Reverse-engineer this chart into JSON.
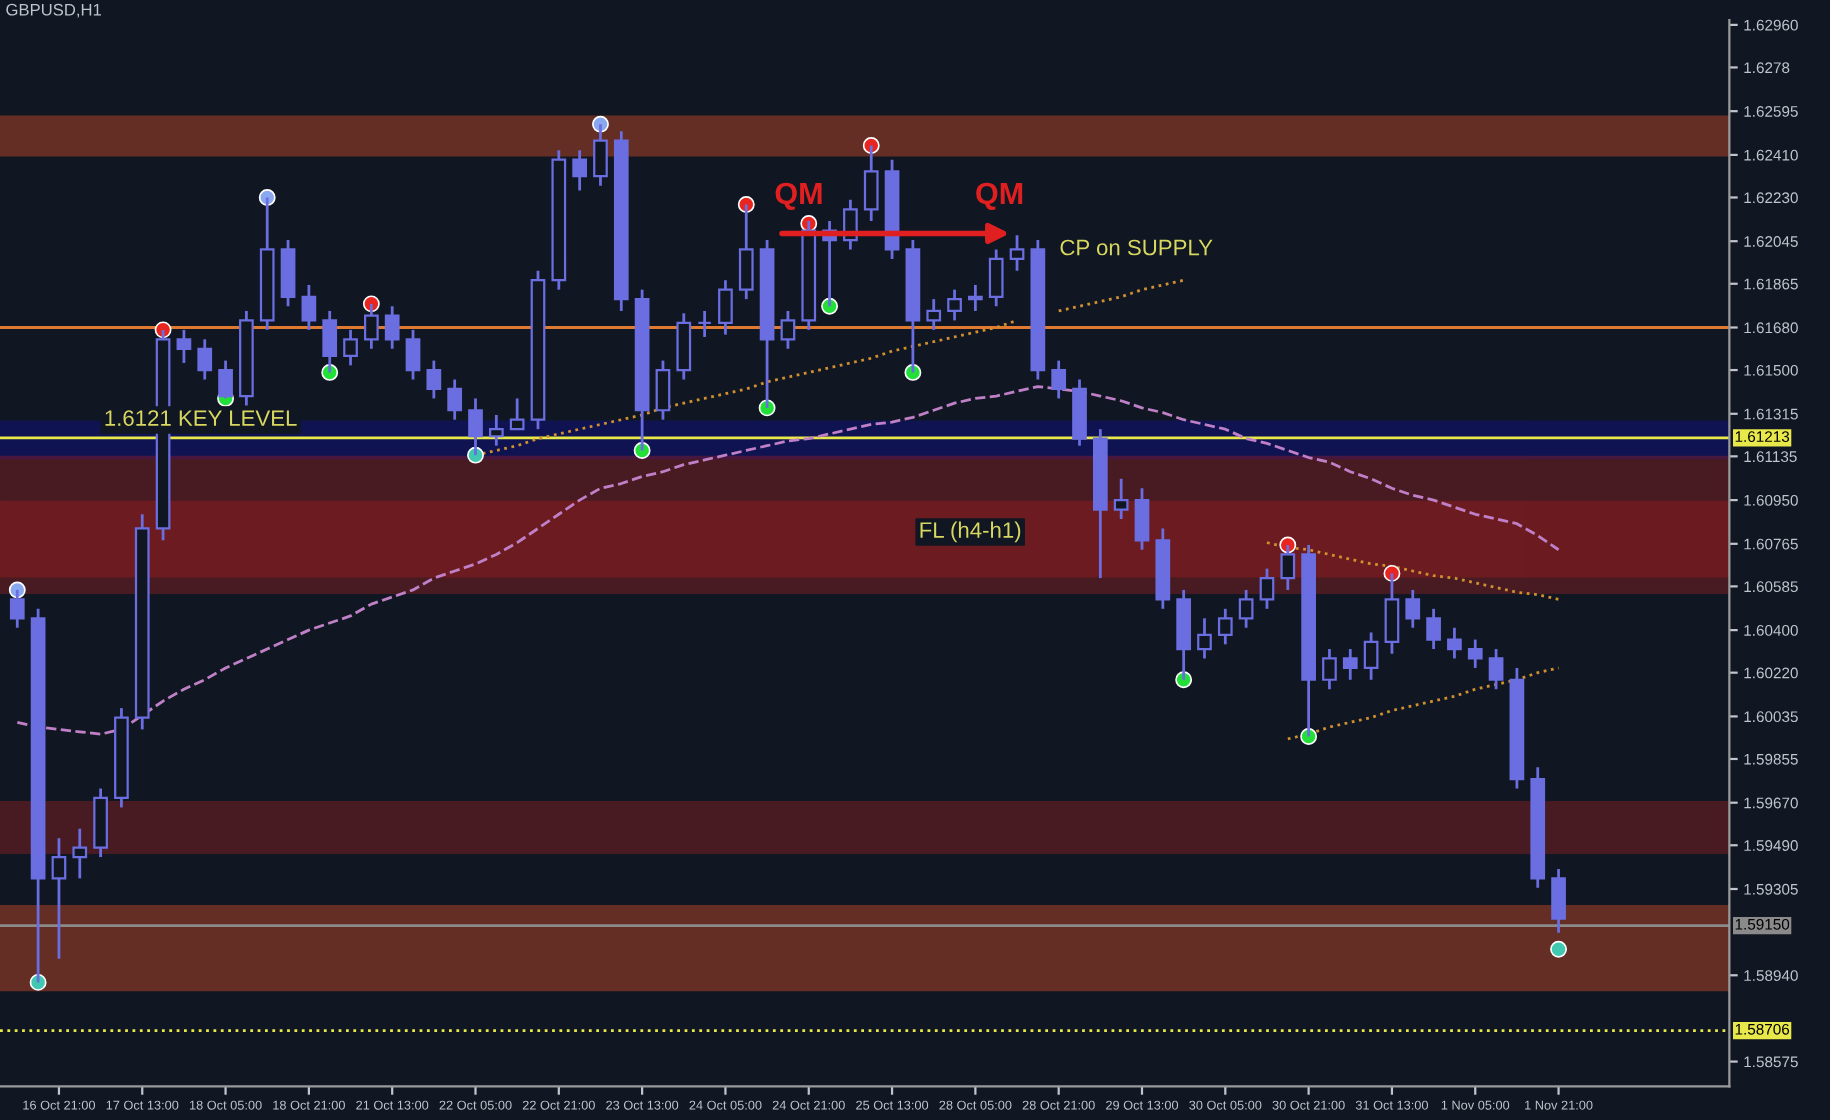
{
  "chart_data": {
    "type": "candlestick",
    "title": "GBPUSD,H1",
    "color": "#6a6ee0",
    "categories": [
      null,
      null,
      "16 Oct 21:00",
      null,
      null,
      null,
      "17 Oct 13:00",
      null,
      null,
      null,
      "18 Oct 05:00",
      null,
      null,
      null,
      "18 Oct 21:00",
      null,
      null,
      null,
      "21 Oct 13:00",
      null,
      null,
      null,
      "22 Oct 05:00",
      null,
      null,
      null,
      "22 Oct 21:00",
      null,
      null,
      null,
      "23 Oct 13:00",
      null,
      null,
      null,
      "24 Oct 05:00",
      null,
      null,
      null,
      "24 Oct 21:00",
      null,
      null,
      null,
      "25 Oct 13:00",
      null,
      null,
      null,
      "28 Oct 05:00",
      null,
      null,
      null,
      "28 Oct 21:00",
      null,
      null,
      null,
      "29 Oct 13:00",
      null,
      null,
      null,
      "30 Oct 05:00",
      null,
      null,
      null,
      "30 Oct 21:00",
      null,
      null,
      null,
      "31 Oct 13:00",
      null,
      null,
      null,
      "1 Nov 05:00",
      null,
      null,
      null,
      "1 Nov 21:00"
    ],
    "ohlc": [
      [
        1.6053,
        1.6057,
        1.6041,
        1.6045
      ],
      [
        1.6045,
        1.6049,
        1.5891,
        1.5935
      ],
      [
        1.5935,
        1.5952,
        1.5901,
        1.5944
      ],
      [
        1.5944,
        1.5956,
        1.5935,
        1.5948
      ],
      [
        1.5948,
        1.5973,
        1.5944,
        1.5969
      ],
      [
        1.5969,
        1.6007,
        1.5965,
        1.6003
      ],
      [
        1.6003,
        1.6089,
        1.5998,
        1.6083
      ],
      [
        1.6083,
        1.6167,
        1.6078,
        1.6163
      ],
      [
        1.6163,
        1.6167,
        1.6153,
        1.6159
      ],
      [
        1.6159,
        1.6163,
        1.6146,
        1.615
      ],
      [
        1.615,
        1.6154,
        1.6138,
        1.6139
      ],
      [
        1.6139,
        1.6175,
        1.6135,
        1.6171
      ],
      [
        1.6171,
        1.6223,
        1.6167,
        1.6201
      ],
      [
        1.6201,
        1.6205,
        1.6177,
        1.6181
      ],
      [
        1.6181,
        1.6186,
        1.6167,
        1.6171
      ],
      [
        1.6171,
        1.6175,
        1.6149,
        1.6156
      ],
      [
        1.6156,
        1.6167,
        1.6152,
        1.6163
      ],
      [
        1.6163,
        1.6178,
        1.6159,
        1.6173
      ],
      [
        1.6173,
        1.6177,
        1.6159,
        1.6163
      ],
      [
        1.6163,
        1.6167,
        1.6146,
        1.615
      ],
      [
        1.615,
        1.6154,
        1.6138,
        1.6142
      ],
      [
        1.6142,
        1.6146,
        1.6129,
        1.6133
      ],
      [
        1.6133,
        1.6138,
        1.6114,
        1.6122
      ],
      [
        1.6122,
        1.6131,
        1.6118,
        1.6125
      ],
      [
        1.6125,
        1.6138,
        1.6125,
        1.6129
      ],
      [
        1.6129,
        1.6192,
        1.6125,
        1.6188
      ],
      [
        1.6188,
        1.6243,
        1.6184,
        1.6239
      ],
      [
        1.6239,
        1.6243,
        1.6226,
        1.6232
      ],
      [
        1.6232,
        1.6254,
        1.6228,
        1.6247
      ],
      [
        1.6247,
        1.6251,
        1.6175,
        1.618
      ],
      [
        1.618,
        1.6184,
        1.6116,
        1.6133
      ],
      [
        1.6133,
        1.6154,
        1.6129,
        1.615
      ],
      [
        1.615,
        1.6174,
        1.6146,
        1.617
      ],
      [
        1.617,
        1.6175,
        1.6164,
        1.617
      ],
      [
        1.617,
        1.6188,
        1.6165,
        1.6184
      ],
      [
        1.6184,
        1.622,
        1.618,
        1.6201
      ],
      [
        1.6201,
        1.6205,
        1.6134,
        1.6163
      ],
      [
        1.6163,
        1.6175,
        1.6159,
        1.6171
      ],
      [
        1.6171,
        1.6213,
        1.6167,
        1.6209
      ],
      [
        1.6209,
        1.6213,
        1.6177,
        1.6205
      ],
      [
        1.6205,
        1.6222,
        1.6201,
        1.6218
      ],
      [
        1.6218,
        1.6245,
        1.6213,
        1.6234
      ],
      [
        1.6234,
        1.6239,
        1.6197,
        1.6201
      ],
      [
        1.6201,
        1.6205,
        1.6149,
        1.6171
      ],
      [
        1.6171,
        1.618,
        1.6167,
        1.6175
      ],
      [
        1.6175,
        1.6184,
        1.6171,
        1.618
      ],
      [
        1.618,
        1.6186,
        1.6175,
        1.6181
      ],
      [
        1.6181,
        1.6201,
        1.6177,
        1.6197
      ],
      [
        1.6197,
        1.6207,
        1.6192,
        1.6201
      ],
      [
        1.6201,
        1.6205,
        1.6146,
        1.615
      ],
      [
        1.615,
        1.6154,
        1.6138,
        1.6142
      ],
      [
        1.6142,
        1.6146,
        1.6118,
        1.6121
      ],
      [
        1.6121,
        1.6125,
        1.6062,
        1.6091
      ],
      [
        1.6091,
        1.6104,
        1.6087,
        1.6095
      ],
      [
        1.6095,
        1.61,
        1.6074,
        1.6078
      ],
      [
        1.6078,
        1.6083,
        1.6049,
        1.6053
      ],
      [
        1.6053,
        1.6057,
        1.6019,
        1.6032
      ],
      [
        1.6032,
        1.6045,
        1.6028,
        1.6038
      ],
      [
        1.6038,
        1.6049,
        1.6034,
        1.6045
      ],
      [
        1.6045,
        1.6057,
        1.6041,
        1.6053
      ],
      [
        1.6053,
        1.6066,
        1.6049,
        1.6062
      ],
      [
        1.6062,
        1.6076,
        1.6057,
        1.6072
      ],
      [
        1.6072,
        1.6076,
        1.5995,
        1.6019
      ],
      [
        1.6019,
        1.6032,
        1.6015,
        1.6028
      ],
      [
        1.6028,
        1.6032,
        1.6019,
        1.6024
      ],
      [
        1.6024,
        1.6039,
        1.6019,
        1.6035
      ],
      [
        1.6035,
        1.6064,
        1.603,
        1.6053
      ],
      [
        1.6053,
        1.6057,
        1.6041,
        1.6045
      ],
      [
        1.6045,
        1.6049,
        1.6032,
        1.6036
      ],
      [
        1.6036,
        1.6041,
        1.6028,
        1.6032
      ],
      [
        1.6032,
        1.6036,
        1.6024,
        1.6028
      ],
      [
        1.6028,
        1.6032,
        1.6015,
        1.6019
      ],
      [
        1.6019,
        1.6024,
        1.5973,
        1.5977
      ],
      [
        1.5977,
        1.5982,
        1.5931,
        1.5935
      ],
      [
        1.5935,
        1.5939,
        1.5912,
        1.5918
      ]
    ],
    "series": [
      {
        "type": "line",
        "color": "#c080c8",
        "line_style": "dashed",
        "values": [
          1.6001,
          1.5999,
          1.5998,
          1.5997,
          1.5996,
          1.5998,
          1.6004,
          1.601,
          1.6015,
          1.6019,
          1.6024,
          1.6028,
          1.6032,
          1.6036,
          1.604,
          1.6043,
          1.6046,
          1.6051,
          1.6054,
          1.6057,
          1.6062,
          1.6065,
          1.6068,
          1.6072,
          1.6077,
          1.6083,
          1.6089,
          1.6095,
          1.61,
          1.6102,
          1.6105,
          1.6107,
          1.611,
          1.6112,
          1.6114,
          1.6116,
          1.6118,
          1.612,
          1.6121,
          1.6123,
          1.6125,
          1.6127,
          1.6128,
          1.613,
          1.6133,
          1.6136,
          1.6138,
          1.6139,
          1.6141,
          1.6143,
          1.6142,
          1.6141,
          1.6139,
          1.6137,
          1.6134,
          1.6132,
          1.6129,
          1.6127,
          1.6125,
          1.6121,
          1.6119,
          1.6116,
          1.6113,
          1.6111,
          1.6107,
          1.6104,
          1.61,
          1.6097,
          1.6095,
          1.6092,
          1.6089,
          1.6087,
          1.6085,
          1.608,
          1.6074
        ]
      },
      {
        "type": "line",
        "color": "#d09030",
        "line_style": "dotted",
        "values": [
          null,
          null,
          null,
          null,
          null,
          null,
          null,
          null,
          null,
          null,
          null,
          null,
          null,
          null,
          null,
          null,
          null,
          null,
          null,
          null,
          null,
          null,
          1.6114,
          1.6116,
          1.6118,
          1.6121,
          1.6123,
          1.6125,
          1.6127,
          1.6129,
          1.6131,
          1.6134,
          1.6136,
          1.6138,
          1.614,
          1.6142,
          1.6145,
          1.6147,
          1.6149,
          1.6151,
          1.6153,
          1.6155,
          1.6158,
          1.616,
          1.6162,
          1.6164,
          1.6166,
          1.6168,
          1.6171,
          null,
          1.6175,
          1.6177,
          1.6179,
          1.6181,
          1.6184,
          1.6186,
          1.6188,
          null,
          null,
          null,
          null,
          null,
          null,
          null,
          null,
          null,
          null,
          null,
          null,
          null,
          null,
          null,
          null,
          null,
          null
        ]
      },
      {
        "type": "line",
        "color": "#d09030",
        "line_style": "dotted",
        "values": [
          null,
          null,
          null,
          null,
          null,
          null,
          null,
          null,
          null,
          null,
          null,
          null,
          null,
          null,
          null,
          null,
          null,
          null,
          null,
          null,
          null,
          null,
          null,
          null,
          null,
          null,
          null,
          null,
          null,
          null,
          null,
          null,
          null,
          null,
          null,
          null,
          null,
          null,
          null,
          null,
          null,
          null,
          null,
          null,
          null,
          null,
          null,
          null,
          null,
          null,
          null,
          null,
          null,
          null,
          null,
          null,
          null,
          null,
          null,
          null,
          1.6077,
          1.6075,
          1.6074,
          1.6072,
          1.607,
          1.6068,
          1.6067,
          1.6065,
          1.6063,
          1.6062,
          1.606,
          1.6058,
          1.6056,
          1.6055,
          1.6053
        ]
      },
      {
        "type": "line",
        "color": "#d09030",
        "line_style": "dotted",
        "values": [
          null,
          null,
          null,
          null,
          null,
          null,
          null,
          null,
          null,
          null,
          null,
          null,
          null,
          null,
          null,
          null,
          null,
          null,
          null,
          null,
          null,
          null,
          null,
          null,
          null,
          null,
          null,
          null,
          null,
          null,
          null,
          null,
          null,
          null,
          null,
          null,
          null,
          null,
          null,
          null,
          null,
          null,
          null,
          null,
          null,
          null,
          null,
          null,
          null,
          null,
          null,
          null,
          null,
          null,
          null,
          null,
          null,
          null,
          null,
          null,
          null,
          1.5994,
          1.5996,
          1.5999,
          1.6001,
          1.6003,
          1.6006,
          1.6008,
          1.601,
          1.6012,
          1.6015,
          1.6017,
          1.6019,
          1.6022,
          1.6024
        ]
      },
      {
        "type": "scatter",
        "color": "#e8251f",
        "marker": "circle",
        "values": [
          null,
          null,
          null,
          null,
          null,
          null,
          null,
          1.6167,
          null,
          null,
          null,
          null,
          null,
          null,
          null,
          null,
          null,
          1.6178,
          null,
          null,
          null,
          null,
          null,
          null,
          null,
          null,
          null,
          null,
          null,
          null,
          null,
          null,
          null,
          null,
          null,
          1.622,
          null,
          null,
          1.6212,
          null,
          null,
          1.6245,
          null,
          null,
          null,
          null,
          null,
          null,
          null,
          null,
          null,
          null,
          null,
          null,
          null,
          null,
          null,
          null,
          null,
          null,
          null,
          1.6076,
          null,
          null,
          null,
          null,
          1.6064,
          null,
          null,
          null,
          null,
          null,
          null,
          null,
          null
        ]
      },
      {
        "type": "scatter",
        "color": "#8aa8f0",
        "marker": "circle",
        "values": [
          1.6057,
          null,
          null,
          null,
          null,
          null,
          null,
          null,
          null,
          null,
          null,
          null,
          1.6223,
          null,
          null,
          null,
          null,
          null,
          null,
          null,
          null,
          null,
          null,
          null,
          null,
          null,
          null,
          null,
          1.6254,
          null,
          null,
          null,
          null,
          null,
          null,
          null,
          null,
          null,
          null,
          null,
          null,
          null,
          null,
          null,
          null,
          null,
          null,
          null,
          null,
          null,
          null,
          null,
          null,
          null,
          null,
          null,
          null,
          null,
          null,
          null,
          null,
          null,
          null,
          null,
          null,
          null,
          null,
          null,
          null,
          null,
          null,
          null,
          null,
          null,
          null
        ]
      },
      {
        "type": "scatter",
        "color": "#22e038",
        "marker": "circle",
        "values": [
          null,
          null,
          null,
          null,
          null,
          null,
          null,
          null,
          null,
          null,
          1.6138,
          null,
          null,
          null,
          null,
          1.6149,
          null,
          null,
          null,
          null,
          null,
          null,
          null,
          null,
          null,
          null,
          null,
          null,
          null,
          null,
          1.6116,
          null,
          null,
          null,
          null,
          null,
          1.6134,
          null,
          null,
          1.6177,
          null,
          null,
          null,
          1.6149,
          null,
          null,
          null,
          null,
          null,
          null,
          null,
          null,
          null,
          null,
          null,
          null,
          1.6019,
          null,
          null,
          null,
          null,
          null,
          1.5995,
          null,
          null,
          null,
          null,
          null,
          null,
          null,
          null,
          null,
          null,
          null,
          null
        ]
      },
      {
        "type": "scatter",
        "color": "#40c8b0",
        "marker": "circle",
        "values": [
          null,
          1.5891,
          null,
          null,
          null,
          null,
          null,
          null,
          null,
          null,
          null,
          null,
          null,
          null,
          null,
          null,
          null,
          null,
          null,
          null,
          null,
          null,
          1.6114,
          null,
          null,
          null,
          null,
          null,
          null,
          null,
          null,
          null,
          null,
          null,
          null,
          null,
          null,
          null,
          null,
          null,
          null,
          null,
          null,
          null,
          null,
          null,
          null,
          null,
          null,
          null,
          null,
          null,
          null,
          null,
          null,
          null,
          null,
          null,
          null,
          null,
          null,
          null,
          null,
          null,
          null,
          null,
          null,
          null,
          null,
          null,
          null,
          null,
          null,
          null,
          1.5905
        ]
      }
    ],
    "ylim": [
      1.5847,
      1.6298
    ],
    "yticks": [
      {
        "value": 1.6296,
        "label": "1.62960"
      },
      1.6278,
      1.62595,
      {
        "value": 1.6241,
        "label": "1.62410"
      },
      {
        "value": 1.6223,
        "label": "1.62230"
      },
      1.62045,
      1.61865,
      {
        "value": 1.6168,
        "label": "1.61680"
      },
      {
        "value": 1.615,
        "label": "1.61500"
      },
      1.61315,
      1.61135,
      {
        "value": 1.6095,
        "label": "1.60950"
      },
      1.60765,
      1.60585,
      {
        "value": 1.604,
        "label": "1.60400"
      },
      {
        "value": 1.6022,
        "label": "1.60220"
      },
      1.60035,
      1.59855,
      {
        "value": 1.5967,
        "label": "1.59670"
      },
      {
        "value": 1.5949,
        "label": "1.59490"
      },
      1.59305,
      {
        "value": 1.5894,
        "label": "1.58940"
      },
      1.58575
    ],
    "ref_lines": [
      {
        "axis": "y",
        "value": 1.61213,
        "label": "1.61213",
        "color": "#e8e84a"
      },
      {
        "axis": "y",
        "value": 1.6168,
        "color": "#e07a30"
      },
      {
        "axis": "y",
        "value": 1.5915,
        "label": "1.59150",
        "color": "#8a8a8a"
      },
      {
        "axis": "y",
        "value": 1.58706,
        "label": "1.58706",
        "color": "#e8e84a",
        "line_style": "dotted"
      }
    ],
    "bands": [
      {
        "axis": "y",
        "from": 1.6241,
        "to": 1.6257,
        "color": "#ff5a2a"
      },
      {
        "axis": "y",
        "from": 1.5888,
        "to": 1.5923,
        "color": "#ff5a2a"
      },
      {
        "axis": "y",
        "from": 1.6113,
        "to": 1.6128,
        "color": "#0c0ca8"
      },
      {
        "axis": "y",
        "from": 1.6056,
        "to": 1.6094,
        "color": "#b02020"
      },
      {
        "axis": "y",
        "from": 1.6063,
        "to": 1.6113,
        "color": "#b02020"
      },
      {
        "axis": "y",
        "from": 1.5946,
        "to": 1.5967,
        "color": "#b02020"
      }
    ],
    "annotations": [
      "1.6121 KEY LEVEL",
      "QM",
      "QM",
      "CP on SUPPLY",
      "FL (h4-h1)"
    ]
  }
}
